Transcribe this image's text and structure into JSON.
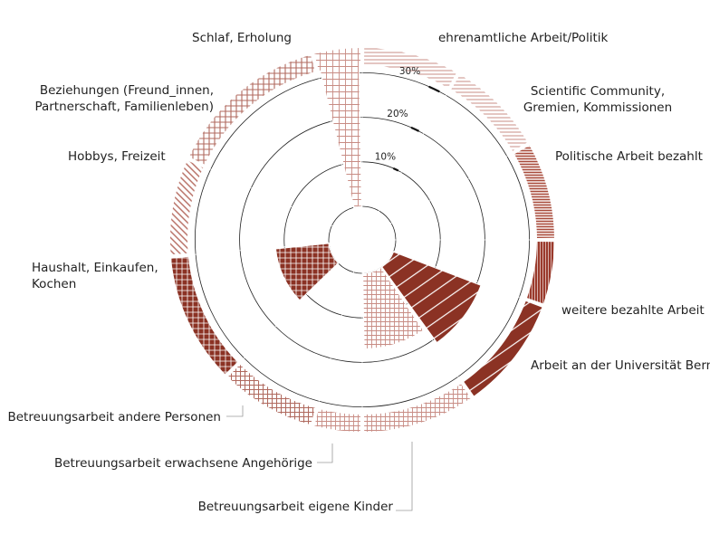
{
  "chart_data": {
    "type": "polar-area",
    "radial_ticks": [
      "10%",
      "20%",
      "30%"
    ],
    "radial_tick_values": [
      10,
      20,
      30
    ],
    "categories": [
      "ehrenamtliche Arbeit/Politik",
      "Scientific Community, Gremien, Kommissionen",
      "Politische Arbeit bezahlt",
      "weitere bezahlte Arbeit",
      "Arbeit an der Universität Bern",
      "Betreuungsarbeit eigene Kinder",
      "Betreuungsarbeit erwachsene Angehörige",
      "Betreuungsarbeit andere Personen",
      "Haushalt, Einkaufen, Kochen",
      "Hobbys, Freizeit",
      "Beziehungen (Freund_innen, Partnerschaft, Familienleben)",
      "Schlaf, Erholung"
    ],
    "label_lines": [
      [
        "ehrenamtliche Arbeit/Politik"
      ],
      [
        "Scientific Community,",
        "Gremien, Kommissionen"
      ],
      [
        "Politische Arbeit bezahlt"
      ],
      [
        "weitere bezahlte Arbeit"
      ],
      [
        "Arbeit an der Universität Bern"
      ],
      [
        "Betreuungsarbeit eigene Kinder"
      ],
      [
        "Betreuungsarbeit erwachsene Angehörige"
      ],
      [
        "Betreuungsarbeit andere Personen"
      ],
      [
        "Haushalt, Einkaufen,",
        "Kochen"
      ],
      [
        "Hobbys, Freizeit"
      ],
      [
        "Beziehungen (Freund_innen,",
        "Partnerschaft, Familienleben)"
      ],
      [
        "Schlaf, Erholung"
      ]
    ],
    "values": [
      0,
      0,
      0,
      0,
      21,
      17,
      0,
      0,
      12,
      0,
      0,
      32
    ],
    "segment_angles": [
      [
        0,
        30
      ],
      [
        30,
        60
      ],
      [
        60,
        90
      ],
      [
        90,
        110
      ],
      [
        110,
        145
      ],
      [
        145,
        180
      ],
      [
        180,
        195
      ],
      [
        195,
        225
      ],
      [
        225,
        265
      ],
      [
        265,
        295
      ],
      [
        295,
        345
      ],
      [
        345,
        360
      ]
    ],
    "patterns": [
      "hlines-light",
      "hlines-light",
      "hlines-dense",
      "vlines",
      "solid-stripe",
      "grid-light",
      "grid-light",
      "grid-medium",
      "solid-vlines",
      "diagonal",
      "cross-medium",
      "cross-light"
    ],
    "axis_range": [
      0,
      38
    ],
    "colors": {
      "dark": "#8b3224",
      "light": "#c88c84",
      "axis": "#222222"
    }
  }
}
